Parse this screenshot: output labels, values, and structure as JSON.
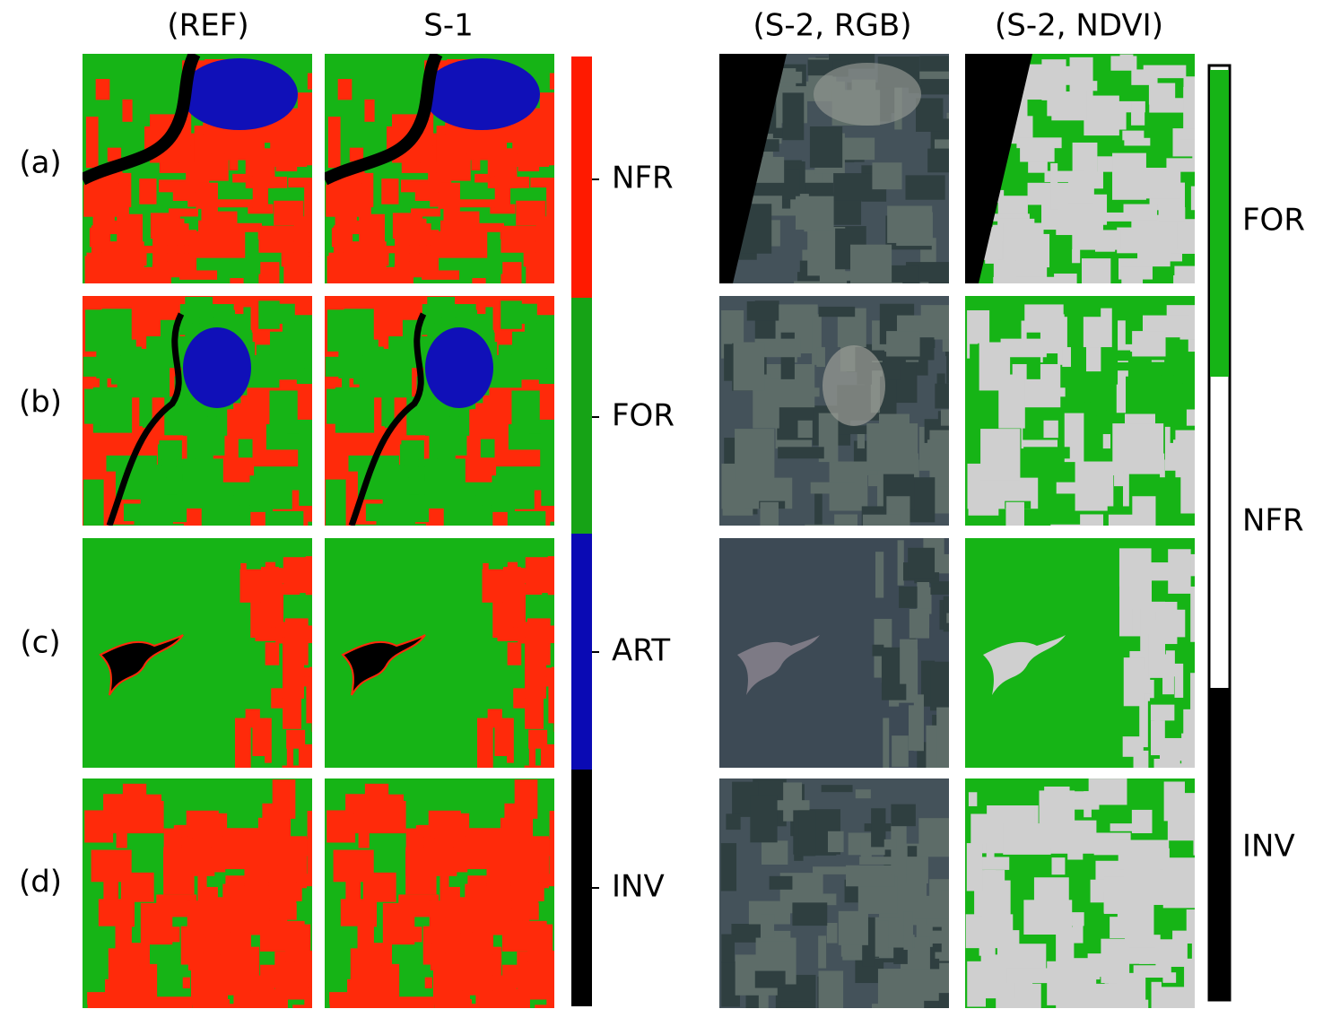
{
  "columns": [
    "(REF)",
    "S-1",
    "(S-2, RGB)",
    "(S-2, NDVI)"
  ],
  "rows": [
    "(a)",
    "(b)",
    "(c)",
    "(d)"
  ],
  "colorbar_left": {
    "labels": [
      "NFR",
      "FOR",
      "ART",
      "INV"
    ]
  },
  "colorbar_right": {
    "labels": [
      "FOR",
      "NFR",
      "INV"
    ]
  }
}
